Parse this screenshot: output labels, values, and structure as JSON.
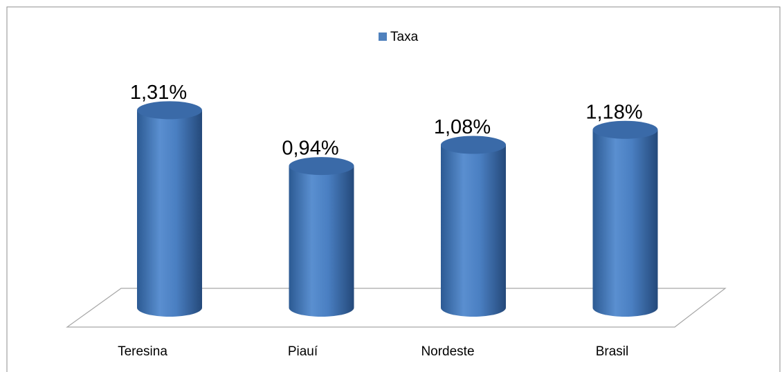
{
  "chart_data": {
    "type": "bar",
    "categories": [
      "Teresina",
      "Piauí",
      "Nordeste",
      "Brasil"
    ],
    "series": [
      {
        "name": "Taxa",
        "color": "#4f81bd",
        "values": [
          1.31,
          0.94,
          1.08,
          1.18
        ],
        "value_labels": [
          "1,31%",
          "0,94%",
          "1,08%",
          "1,18%"
        ]
      }
    ],
    "legend": "top"
  }
}
